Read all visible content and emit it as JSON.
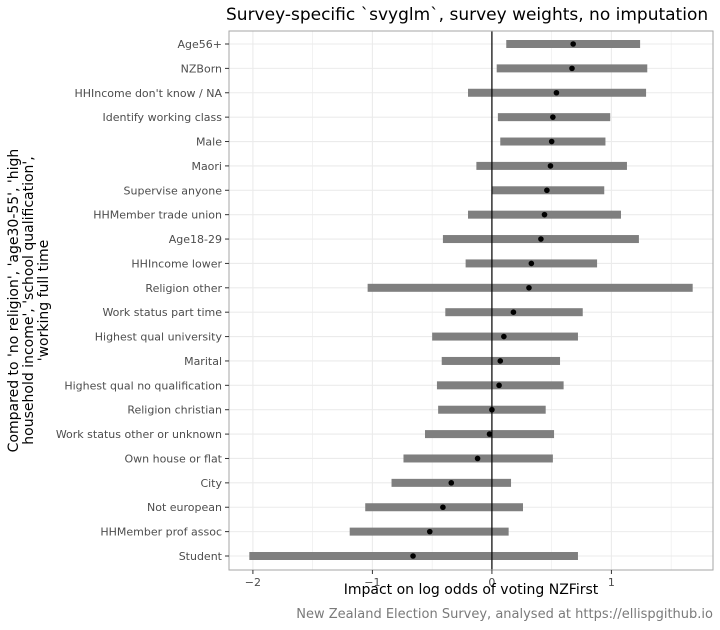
{
  "chart_data": {
    "type": "dot-interval",
    "title": "Survey-specific `svyglm`, survey weights, no imputation",
    "xlabel": "Impact on log odds of voting NZFirst",
    "ylabel_lines": [
      "Compared to 'no religion', 'age30-55', 'high",
      "household income', 'school qualification',",
      "'working full time"
    ],
    "caption": "New Zealand Election Survey, analysed at https://ellispgithub.io",
    "xlim": [
      -2.2,
      1.85
    ],
    "xticks": [
      -2,
      -1,
      0,
      1
    ],
    "xtick_labels": [
      "−2",
      "−1",
      "0",
      "1"
    ],
    "reference_line": 0,
    "grid": true,
    "colors": {
      "interval": "#7f7f7f",
      "point": "#000000",
      "grid": "#ebebeb",
      "panel_border": "#a6a6a6",
      "ref_line": "#000000"
    },
    "categories": [
      "Age56+",
      "NZBorn",
      "HHIncome don't know / NA",
      "Identify working class",
      "Male",
      "Maori",
      "Supervise anyone",
      "HHMember trade union",
      "Age18-29",
      "HHIncome lower",
      "Religion other",
      "Work status part time",
      "Highest qual university",
      "Marital",
      "Highest qual no qualification",
      "Religion christian",
      "Work status other or unknown",
      "Own house or flat",
      "City",
      "Not european",
      "HHMember prof assoc",
      "Student"
    ],
    "estimate": [
      0.68,
      0.67,
      0.54,
      0.51,
      0.5,
      0.49,
      0.46,
      0.44,
      0.41,
      0.33,
      0.31,
      0.18,
      0.1,
      0.07,
      0.06,
      0.0,
      -0.02,
      -0.12,
      -0.34,
      -0.41,
      -0.52,
      -0.66
    ],
    "lower": [
      0.12,
      0.04,
      -0.2,
      0.05,
      0.07,
      -0.13,
      0.0,
      -0.2,
      -0.41,
      -0.22,
      -1.04,
      -0.39,
      -0.5,
      -0.42,
      -0.46,
      -0.45,
      -0.56,
      -0.74,
      -0.84,
      -1.06,
      -1.19,
      -2.03
    ],
    "upper": [
      1.24,
      1.3,
      1.29,
      0.99,
      0.95,
      1.13,
      0.94,
      1.08,
      1.23,
      0.88,
      1.68,
      0.76,
      0.72,
      0.57,
      0.6,
      0.45,
      0.52,
      0.51,
      0.16,
      0.26,
      0.14,
      0.72
    ]
  }
}
